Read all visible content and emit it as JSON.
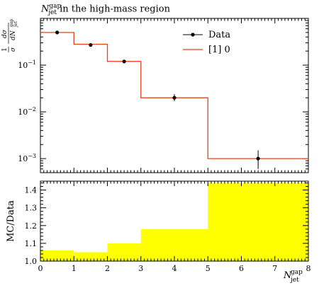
{
  "chart_data": [
    {
      "type": "line",
      "title_symbol": "N",
      "title_sup": "gap",
      "title_sub": "jet",
      "title_rest": " in the high-mass region",
      "ylabel": "1/σ dσ/dN_jet^gap",
      "yscale": "log",
      "ylim": [
        0.0005,
        1.0
      ],
      "xlim": [
        0,
        8
      ],
      "legend_position": "top-right",
      "bins": [
        [
          0,
          1
        ],
        [
          1,
          2
        ],
        [
          2,
          3
        ],
        [
          3,
          5
        ],
        [
          5,
          8
        ]
      ],
      "series": [
        {
          "name": "Data",
          "style": "points",
          "color": "#000000",
          "x": [
            0.5,
            1.5,
            2.5,
            4.0,
            6.5
          ],
          "y": [
            0.5,
            0.27,
            0.12,
            0.02,
            0.001
          ],
          "yerr_low": [
            0.04,
            0.02,
            0.01,
            0.003,
            0.0004
          ],
          "yerr_high": [
            0.04,
            0.02,
            0.01,
            0.004,
            0.0005
          ]
        },
        {
          "name": "[1] 0",
          "style": "step",
          "color": "#e8401c",
          "values": [
            0.5,
            0.28,
            0.12,
            0.02,
            0.001
          ]
        }
      ]
    },
    {
      "type": "area",
      "ylabel": "MC/Data",
      "xlabel_symbol": "N",
      "xlabel_sup": "gap",
      "xlabel_sub": "jet",
      "ylim": [
        1.0,
        1.45
      ],
      "xlim": [
        0,
        8
      ],
      "x_ticks": [
        "0",
        "1",
        "2",
        "3",
        "4",
        "5",
        "6",
        "7",
        "8"
      ],
      "y_ticks": [
        "1.0",
        "1.1",
        "1.2",
        "1.3",
        "1.4"
      ],
      "band_color": "#ffff00",
      "bins": [
        [
          0,
          1
        ],
        [
          1,
          2
        ],
        [
          2,
          3
        ],
        [
          3,
          5
        ],
        [
          5,
          8
        ]
      ],
      "values": [
        1.06,
        1.05,
        1.1,
        1.18,
        1.44
      ]
    }
  ],
  "upper_ticks": {
    "major": [
      {
        "value": 0.1,
        "base": "10",
        "exp": "−1"
      },
      {
        "value": 0.01,
        "base": "10",
        "exp": "−2"
      },
      {
        "value": 0.001,
        "base": "10",
        "exp": "−3"
      }
    ]
  },
  "ylabel_parts": {
    "num": "1",
    "den": "σ",
    "dnum": "dσ",
    "dden": "dN",
    "dden_sup": "gap",
    "dden_sub": "jet"
  }
}
